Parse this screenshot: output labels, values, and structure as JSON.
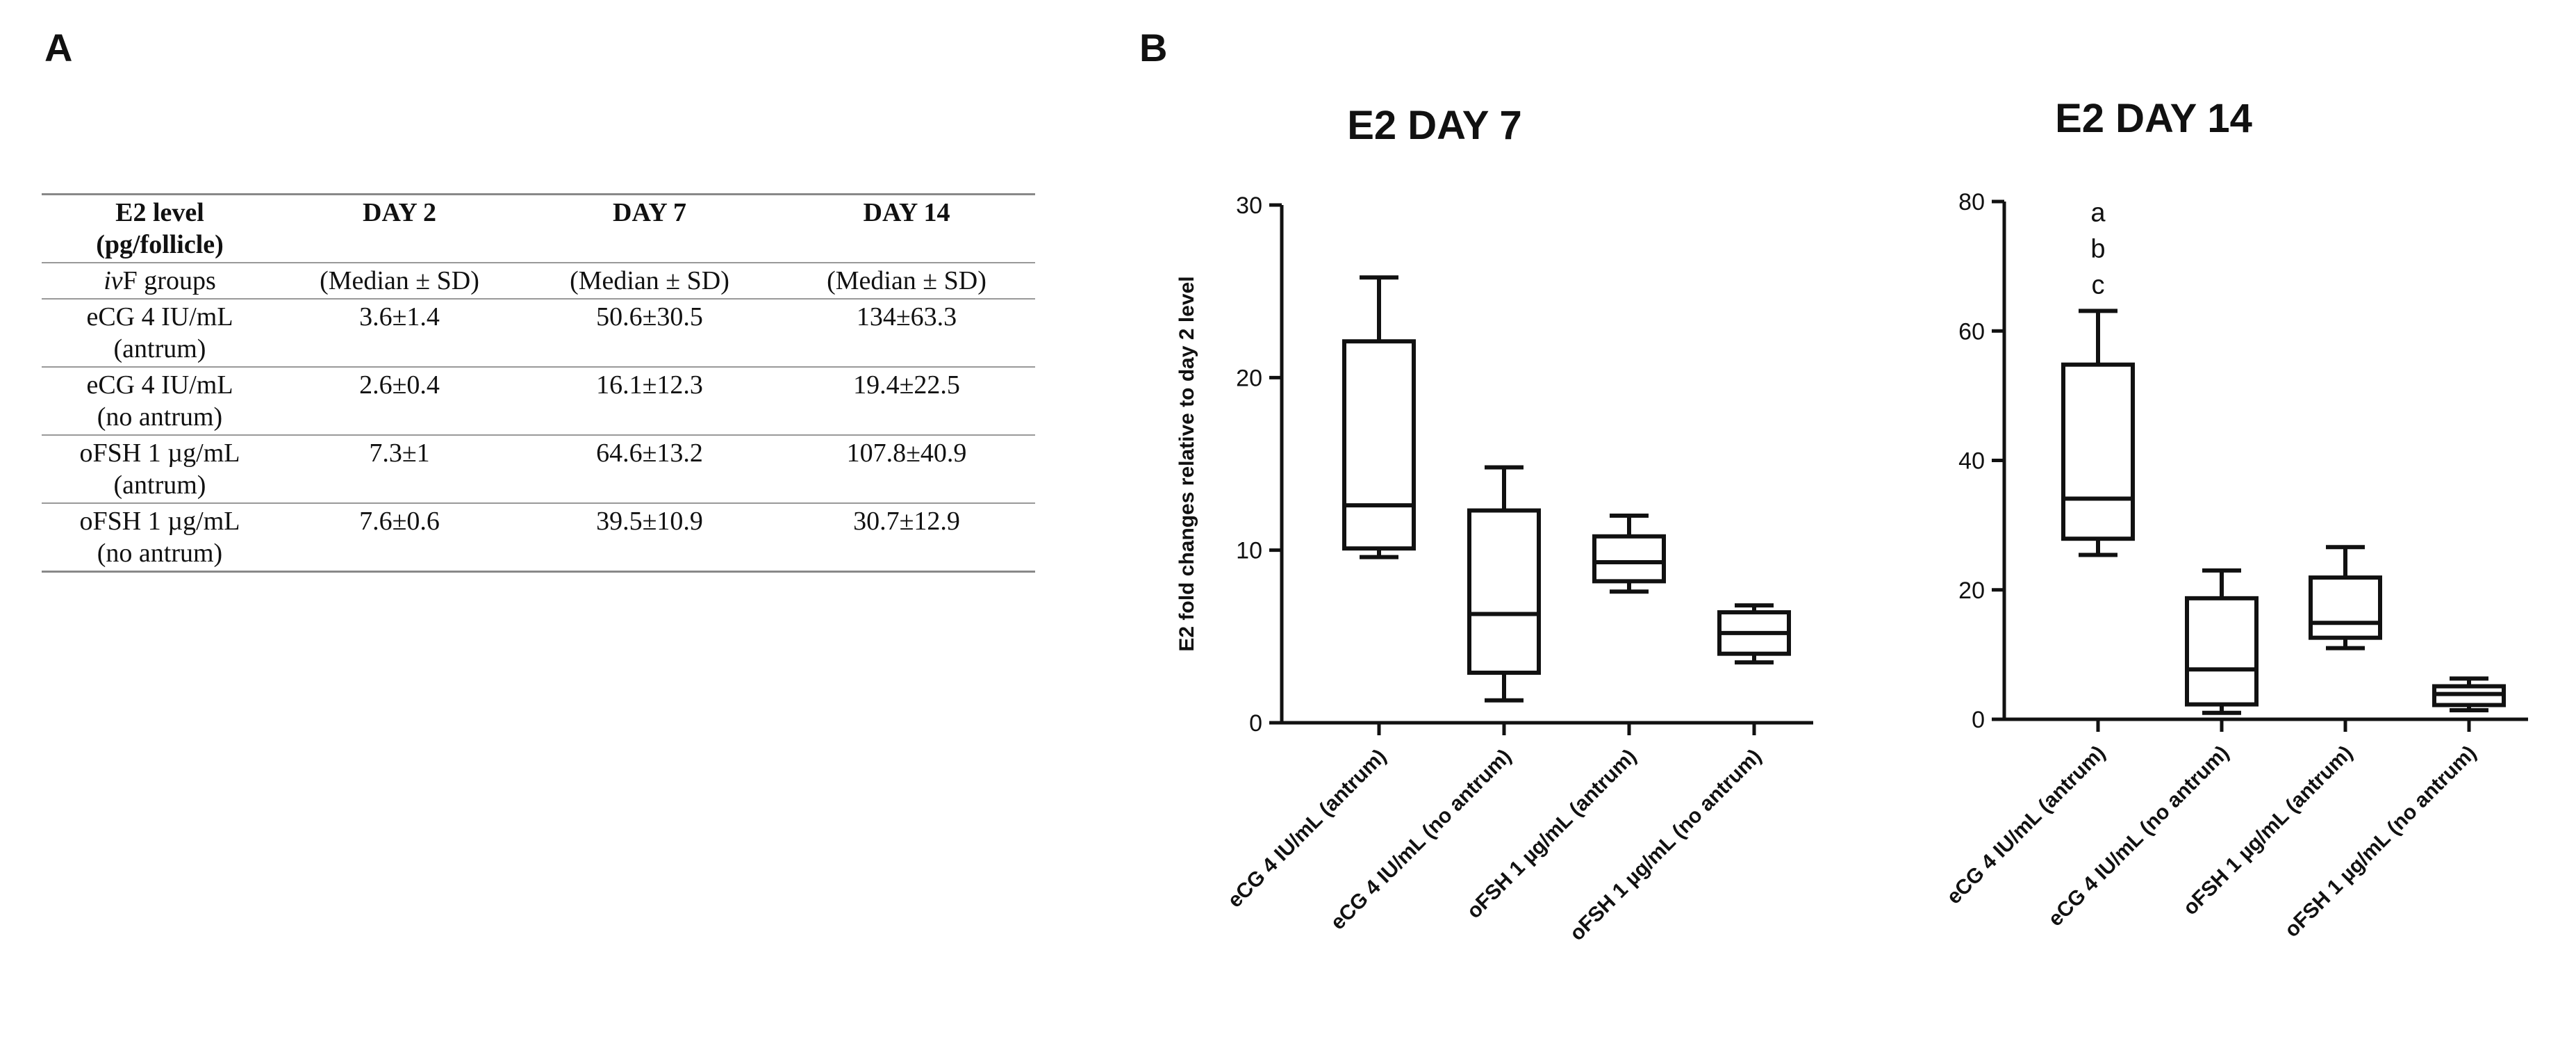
{
  "panel_labels": {
    "a": "A",
    "b": "B"
  },
  "table": {
    "header": [
      "E2 level\n(pg/follicle)",
      "DAY 2",
      "DAY 7",
      "DAY 14"
    ],
    "subheader": {
      "prefix": "iv",
      "suffix": "F groups",
      "stats": [
        "(Median ± SD)",
        "(Median ± SD)",
        "(Median ± SD)"
      ]
    },
    "rows": [
      {
        "group": [
          "eCG 4 IU/mL",
          "(antrum)"
        ],
        "values": [
          "3.6±1.4",
          "50.6±30.5",
          "134±63.3"
        ]
      },
      {
        "group": [
          "eCG 4 IU/mL",
          "(no antrum)"
        ],
        "values": [
          "2.6±0.4",
          "16.1±12.3",
          "19.4±22.5"
        ]
      },
      {
        "group": [
          "oFSH 1 µg/mL",
          "(antrum)"
        ],
        "values": [
          "7.3±1",
          "64.6±13.2",
          "107.8±40.9"
        ]
      },
      {
        "group": [
          "oFSH 1 µg/mL",
          "(no antrum)"
        ],
        "values": [
          "7.6±0.6",
          "39.5±10.9",
          "30.7±12.9"
        ]
      }
    ]
  },
  "chart_data": [
    {
      "type": "box",
      "title": "E2 DAY 7",
      "ylabel": "E2 fold changes relative to day 2 level",
      "ylim": [
        0,
        30
      ],
      "yticks": [
        0,
        10,
        20,
        30
      ],
      "categories": [
        "eCG 4 IU/mL (antrum)",
        "eCG 4 IU/mL (no antrum)",
        "oFSH 1 µg/mL (antrum)",
        "oFSH 1 µg/mL (no antrum)"
      ],
      "boxes": [
        {
          "min": 9.6,
          "q1": 10.1,
          "median": 12.6,
          "q3": 22.1,
          "max": 25.8
        },
        {
          "min": 1.3,
          "q1": 2.9,
          "median": 6.3,
          "q3": 12.3,
          "max": 14.8
        },
        {
          "min": 7.6,
          "q1": 8.2,
          "median": 9.3,
          "q3": 10.8,
          "max": 12.0
        },
        {
          "min": 3.5,
          "q1": 4.0,
          "median": 5.2,
          "q3": 6.4,
          "max": 6.8
        }
      ],
      "annotations": []
    },
    {
      "type": "box",
      "title": "E2 DAY 14",
      "ylabel": "",
      "ylim": [
        0,
        80
      ],
      "yticks": [
        0,
        20,
        40,
        60,
        80
      ],
      "categories": [
        "eCG 4 IU/mL (antrum)",
        "eCG 4 IU/mL (no antrum)",
        "oFSH 1 µg/mL (antrum)",
        "oFSH 1 µg/mL (no antrum)"
      ],
      "boxes": [
        {
          "min": 25.4,
          "q1": 27.9,
          "median": 34.1,
          "q3": 54.8,
          "max": 63.1
        },
        {
          "min": 1.0,
          "q1": 2.3,
          "median": 7.7,
          "q3": 18.7,
          "max": 23.0
        },
        {
          "min": 11.0,
          "q1": 12.6,
          "median": 14.9,
          "q3": 21.9,
          "max": 26.6
        },
        {
          "min": 1.4,
          "q1": 2.2,
          "median": 3.9,
          "q3": 5.1,
          "max": 6.3
        }
      ],
      "annotations": [
        {
          "category": 0,
          "labels": [
            "a",
            "b",
            "c"
          ]
        }
      ]
    }
  ]
}
